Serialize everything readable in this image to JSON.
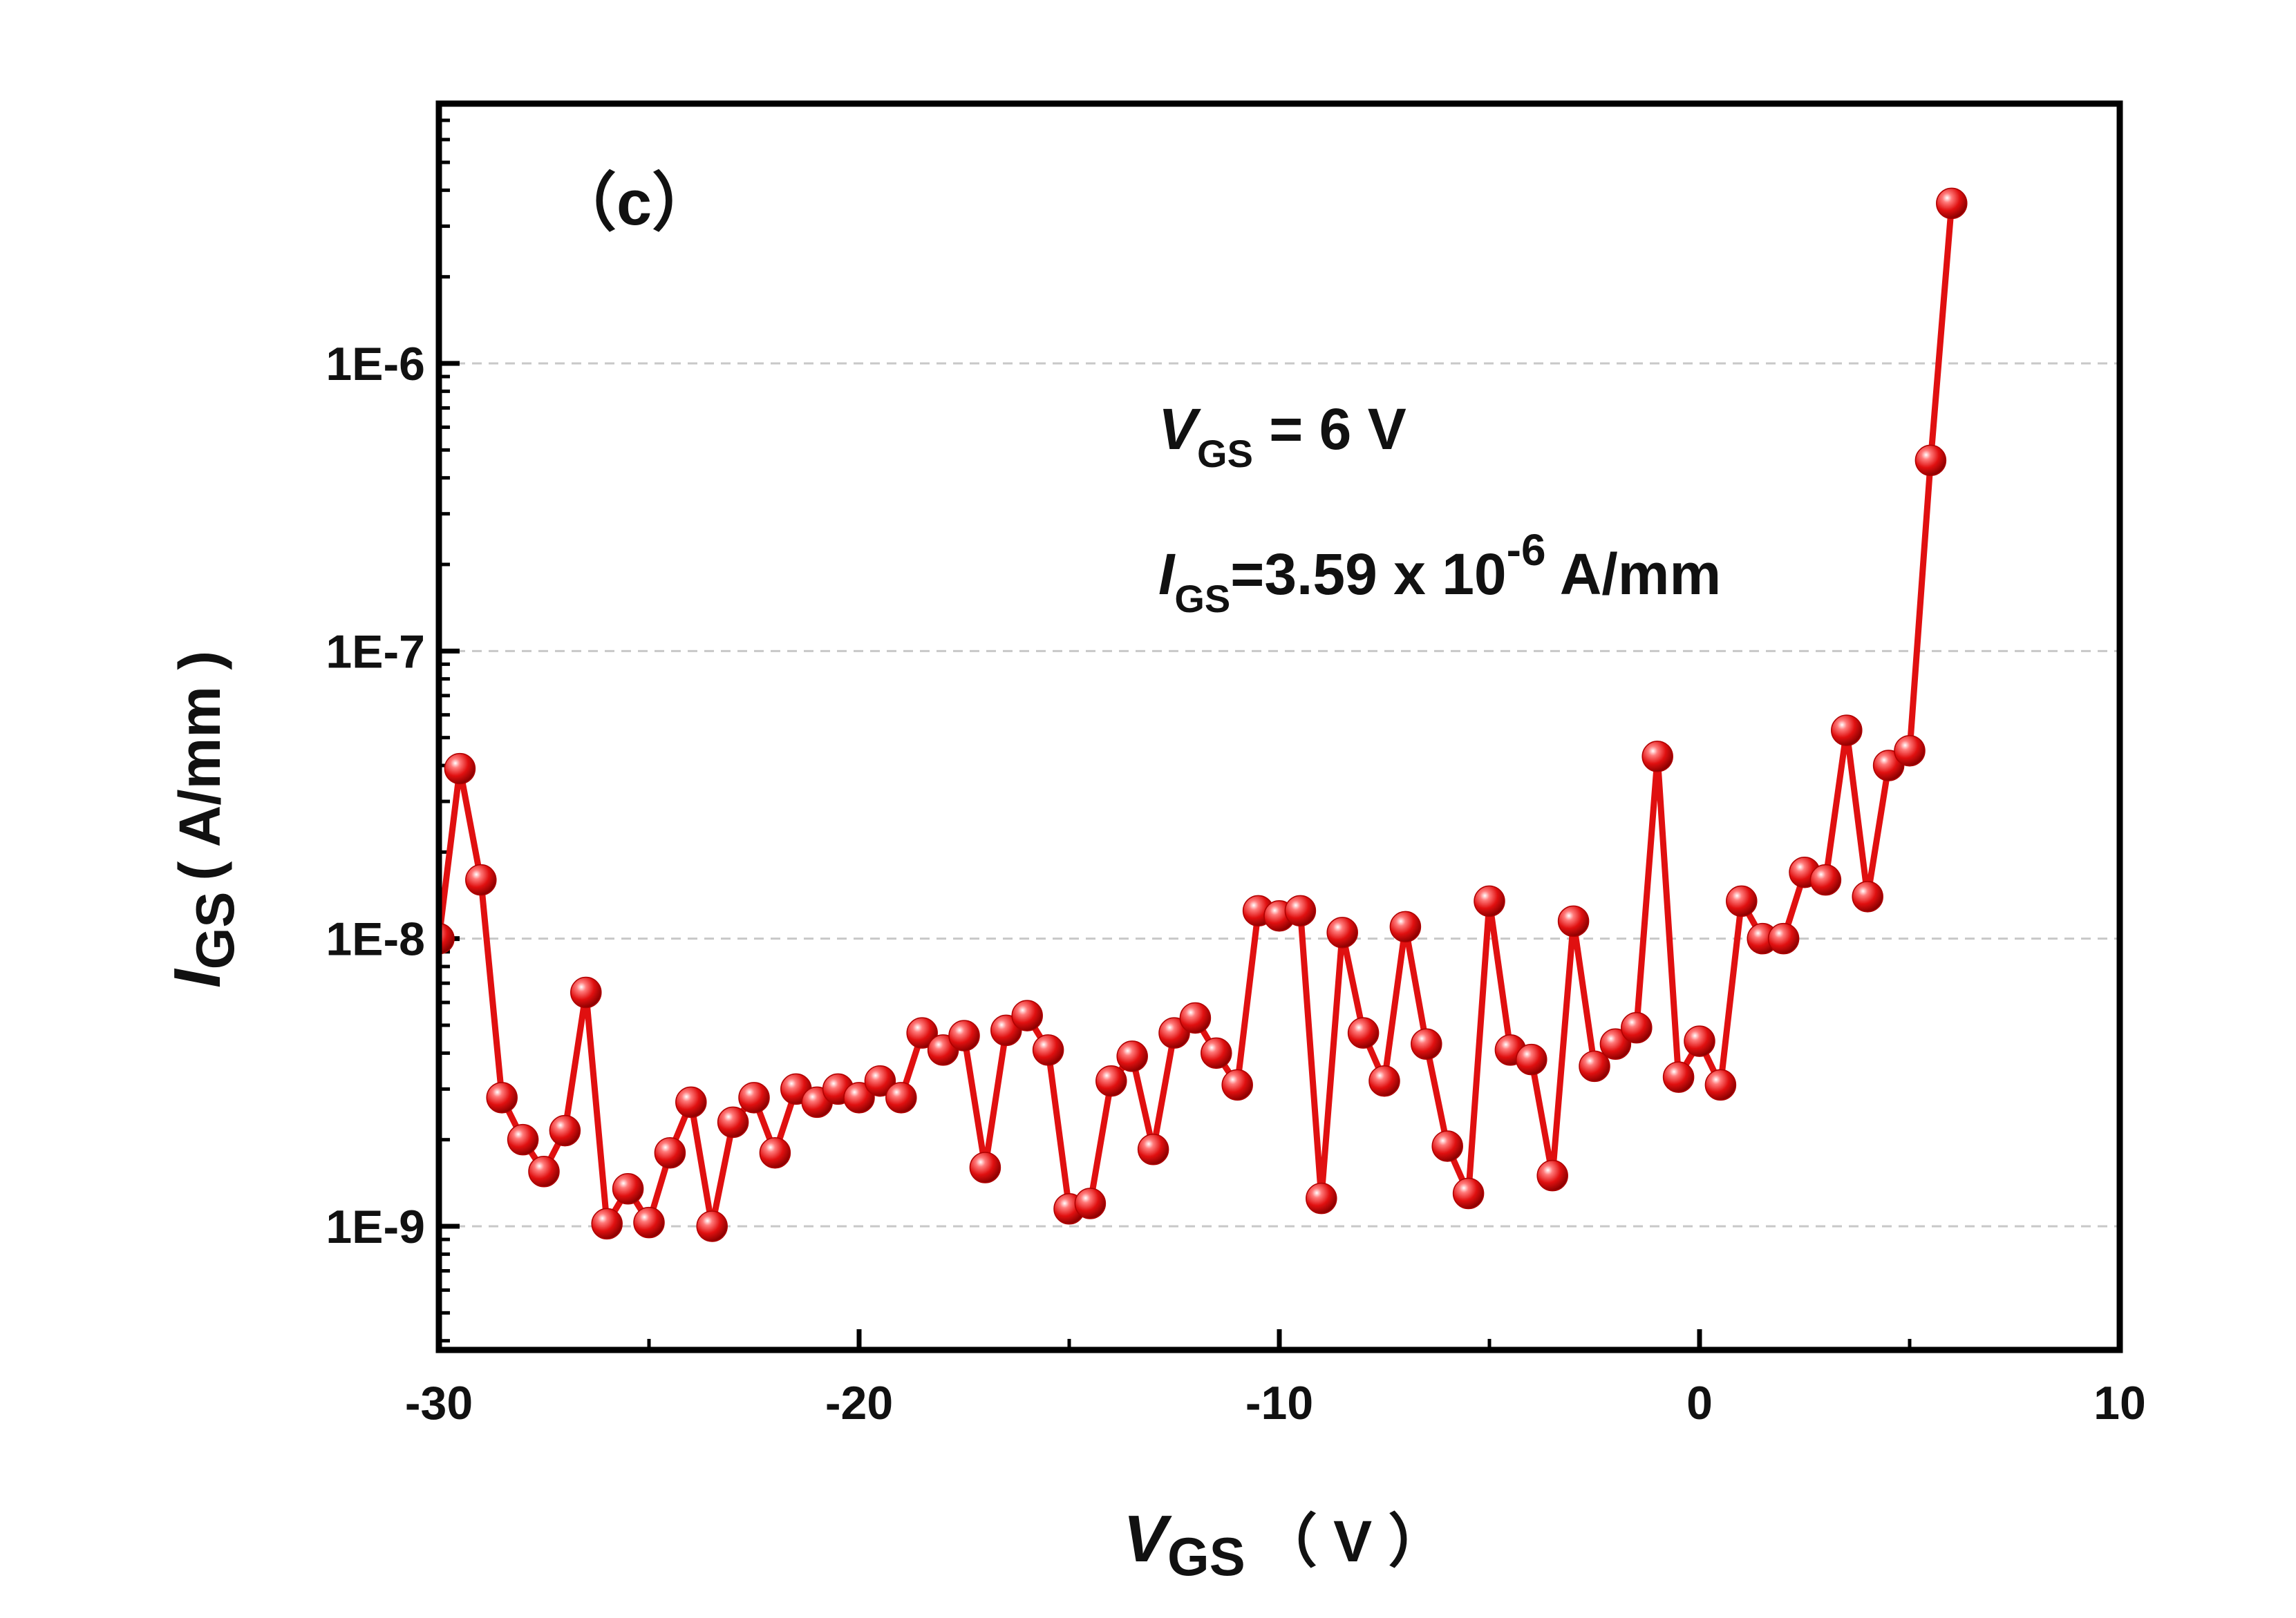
{
  "chart_data": {
    "type": "scatter",
    "panel_label": "（c）",
    "xlabel": {
      "main": "V",
      "sub": "GS",
      "unit": "（ V ）"
    },
    "ylabel": {
      "main": "I",
      "sub": "GS",
      "unit": "( A/mm )"
    },
    "xlim": [
      -30,
      10
    ],
    "ylim": [
      4e-10,
      8e-06
    ],
    "yscale": "log",
    "xticks": [
      -30,
      -20,
      -10,
      0,
      10
    ],
    "xtick_labels": [
      "-30",
      "-20",
      "-10",
      "0",
      "10"
    ],
    "yticks": [
      1e-09,
      1e-08,
      1e-07,
      1e-06
    ],
    "ytick_labels": [
      "1E-9",
      "1E-8",
      "1E-7",
      "1E-6"
    ],
    "grid": "horizontal dashed at major y ticks",
    "annotations": [
      {
        "main": "V",
        "sub": "GS",
        "text": " = 6 V"
      },
      {
        "main": "I",
        "sub": "GS",
        "text": "=3.59 x 10",
        "sup": "-6",
        "tail": " A/mm"
      }
    ],
    "series": [
      {
        "color": "#e01010",
        "marker": "sphere",
        "line": "solid",
        "x": [
          -30.0,
          -29.5,
          -29.0,
          -28.5,
          -28.0,
          -27.5,
          -27.0,
          -26.5,
          -26.0,
          -25.5,
          -25.0,
          -24.5,
          -24.0,
          -23.5,
          -23.0,
          -22.5,
          -22.0,
          -21.5,
          -21.0,
          -20.5,
          -20.0,
          -19.5,
          -19.0,
          -18.5,
          -18.0,
          -17.5,
          -17.0,
          -16.5,
          -16.0,
          -15.5,
          -15.0,
          -14.5,
          -14.0,
          -13.5,
          -13.0,
          -12.5,
          -12.0,
          -11.5,
          -11.0,
          -10.5,
          -10.0,
          -9.5,
          -9.0,
          -8.5,
          -8.0,
          -7.5,
          -7.0,
          -6.5,
          -6.0,
          -5.5,
          -5.0,
          -4.5,
          -4.0,
          -3.5,
          -3.0,
          -2.5,
          -2.0,
          -1.5,
          -1.0,
          -0.5,
          0.0,
          0.5,
          1.0,
          1.5,
          2.0,
          2.5,
          3.0,
          3.5,
          4.0,
          4.5,
          5.0,
          5.5,
          6.0
        ],
        "y": [
          1e-08,
          3.9e-08,
          1.6e-08,
          2.8e-09,
          2e-09,
          1.55e-09,
          2.15e-09,
          6.5e-09,
          1.02e-09,
          1.35e-09,
          1.03e-09,
          1.8e-09,
          2.7e-09,
          1e-09,
          2.3e-09,
          2.8e-09,
          1.8e-09,
          3e-09,
          2.7e-09,
          3e-09,
          2.8e-09,
          3.2e-09,
          2.8e-09,
          4.7e-09,
          4.1e-09,
          4.6e-09,
          1.6e-09,
          4.8e-09,
          5.4e-09,
          4.1e-09,
          1.15e-09,
          1.2e-09,
          3.2e-09,
          3.9e-09,
          1.85e-09,
          4.7e-09,
          5.3e-09,
          4e-09,
          3.1e-09,
          1.25e-08,
          1.2e-08,
          1.25e-08,
          1.25e-09,
          1.05e-08,
          4.7e-09,
          3.2e-09,
          1.1e-08,
          4.3e-09,
          1.9e-09,
          1.3e-09,
          1.35e-08,
          4.1e-09,
          3.8e-09,
          1.5e-09,
          1.15e-08,
          3.6e-09,
          4.3e-09,
          4.9e-09,
          4.3e-08,
          3.3e-09,
          4.4e-09,
          3.1e-09,
          1.35e-08,
          1e-08,
          1e-08,
          1.7e-08,
          1.6e-08,
          5.3e-08,
          1.4e-08,
          4e-08,
          4.5e-08,
          4.6e-07,
          3.6e-06
        ]
      }
    ]
  }
}
